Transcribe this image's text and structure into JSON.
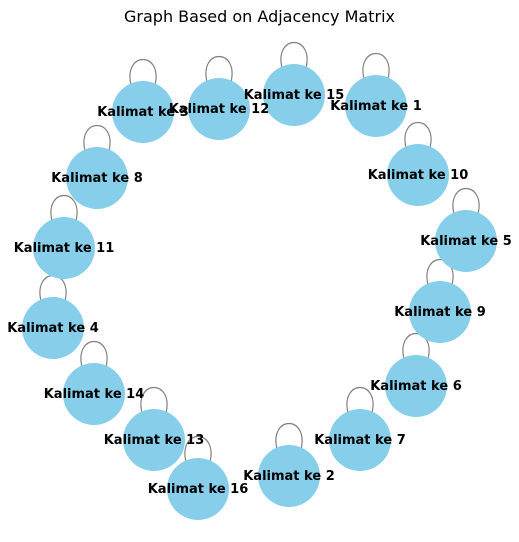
{
  "title": "Graph Based on Adjacency Matrix",
  "colors": {
    "node_fill": "#87CEEB",
    "edge": "#808080",
    "label": "#000000"
  },
  "nodes": [
    {
      "label": "Kalimat ke 1"
    },
    {
      "label": "Kalimat ke 2"
    },
    {
      "label": "Kalimat ke 3"
    },
    {
      "label": "Kalimat ke 4"
    },
    {
      "label": "Kalimat ke 5"
    },
    {
      "label": "Kalimat ke 6"
    },
    {
      "label": "Kalimat ke 7"
    },
    {
      "label": "Kalimat ke 8"
    },
    {
      "label": "Kalimat ke 9"
    },
    {
      "label": "Kalimat ke 10"
    },
    {
      "label": "Kalimat ke 11"
    },
    {
      "label": "Kalimat ke 12"
    },
    {
      "label": "Kalimat ke 13"
    },
    {
      "label": "Kalimat ke 14"
    },
    {
      "label": "Kalimat ke 15"
    },
    {
      "label": "Kalimat ke 16"
    }
  ],
  "self_loops": true
}
